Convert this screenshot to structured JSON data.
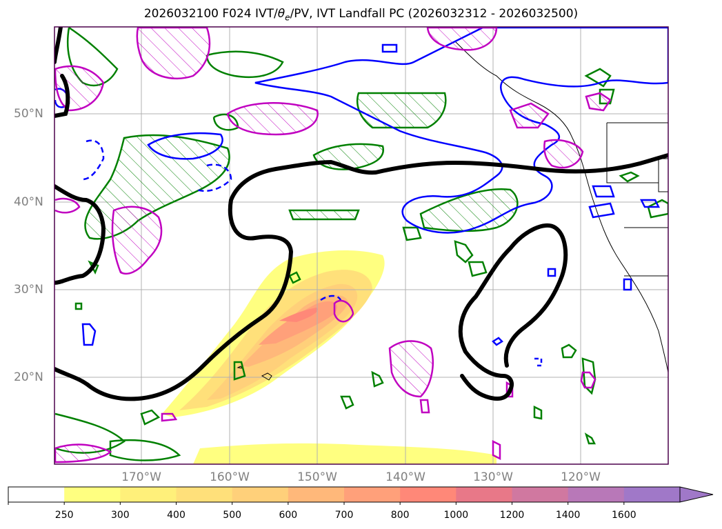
{
  "title_parts": {
    "prefix": "2026032100 F024 IVT/",
    "theta_symbol": "θ",
    "theta_subscript": "e",
    "suffix": "/PV, IVT Landfall PC (2026032312 - 2026032500)"
  },
  "lat_labels": [
    "50°N",
    "40°N",
    "30°N",
    "20°N"
  ],
  "lon_labels": [
    "170°W",
    "160°W",
    "150°W",
    "140°W",
    "130°W",
    "120°W"
  ],
  "colorbar": {
    "ticks": [
      "250",
      "300",
      "400",
      "500",
      "600",
      "700",
      "800",
      "1000",
      "1200",
      "1400",
      "1600"
    ],
    "colors": [
      "#ffffff",
      "#ffff80",
      "#fff07a",
      "#ffe07a",
      "#ffd07a",
      "#ffb87a",
      "#ffa07a",
      "#ff8878",
      "#e87888",
      "#d078a0",
      "#b878b8",
      "#a078c8"
    ],
    "extend": "max"
  },
  "legend_colors": {
    "ivt_contour": "#000000",
    "theta_e": "#008000",
    "pv": "#0000ff",
    "landfall_pc": "#c000c0",
    "coastline": "#000000",
    "grid": "#b0b0b0"
  }
}
